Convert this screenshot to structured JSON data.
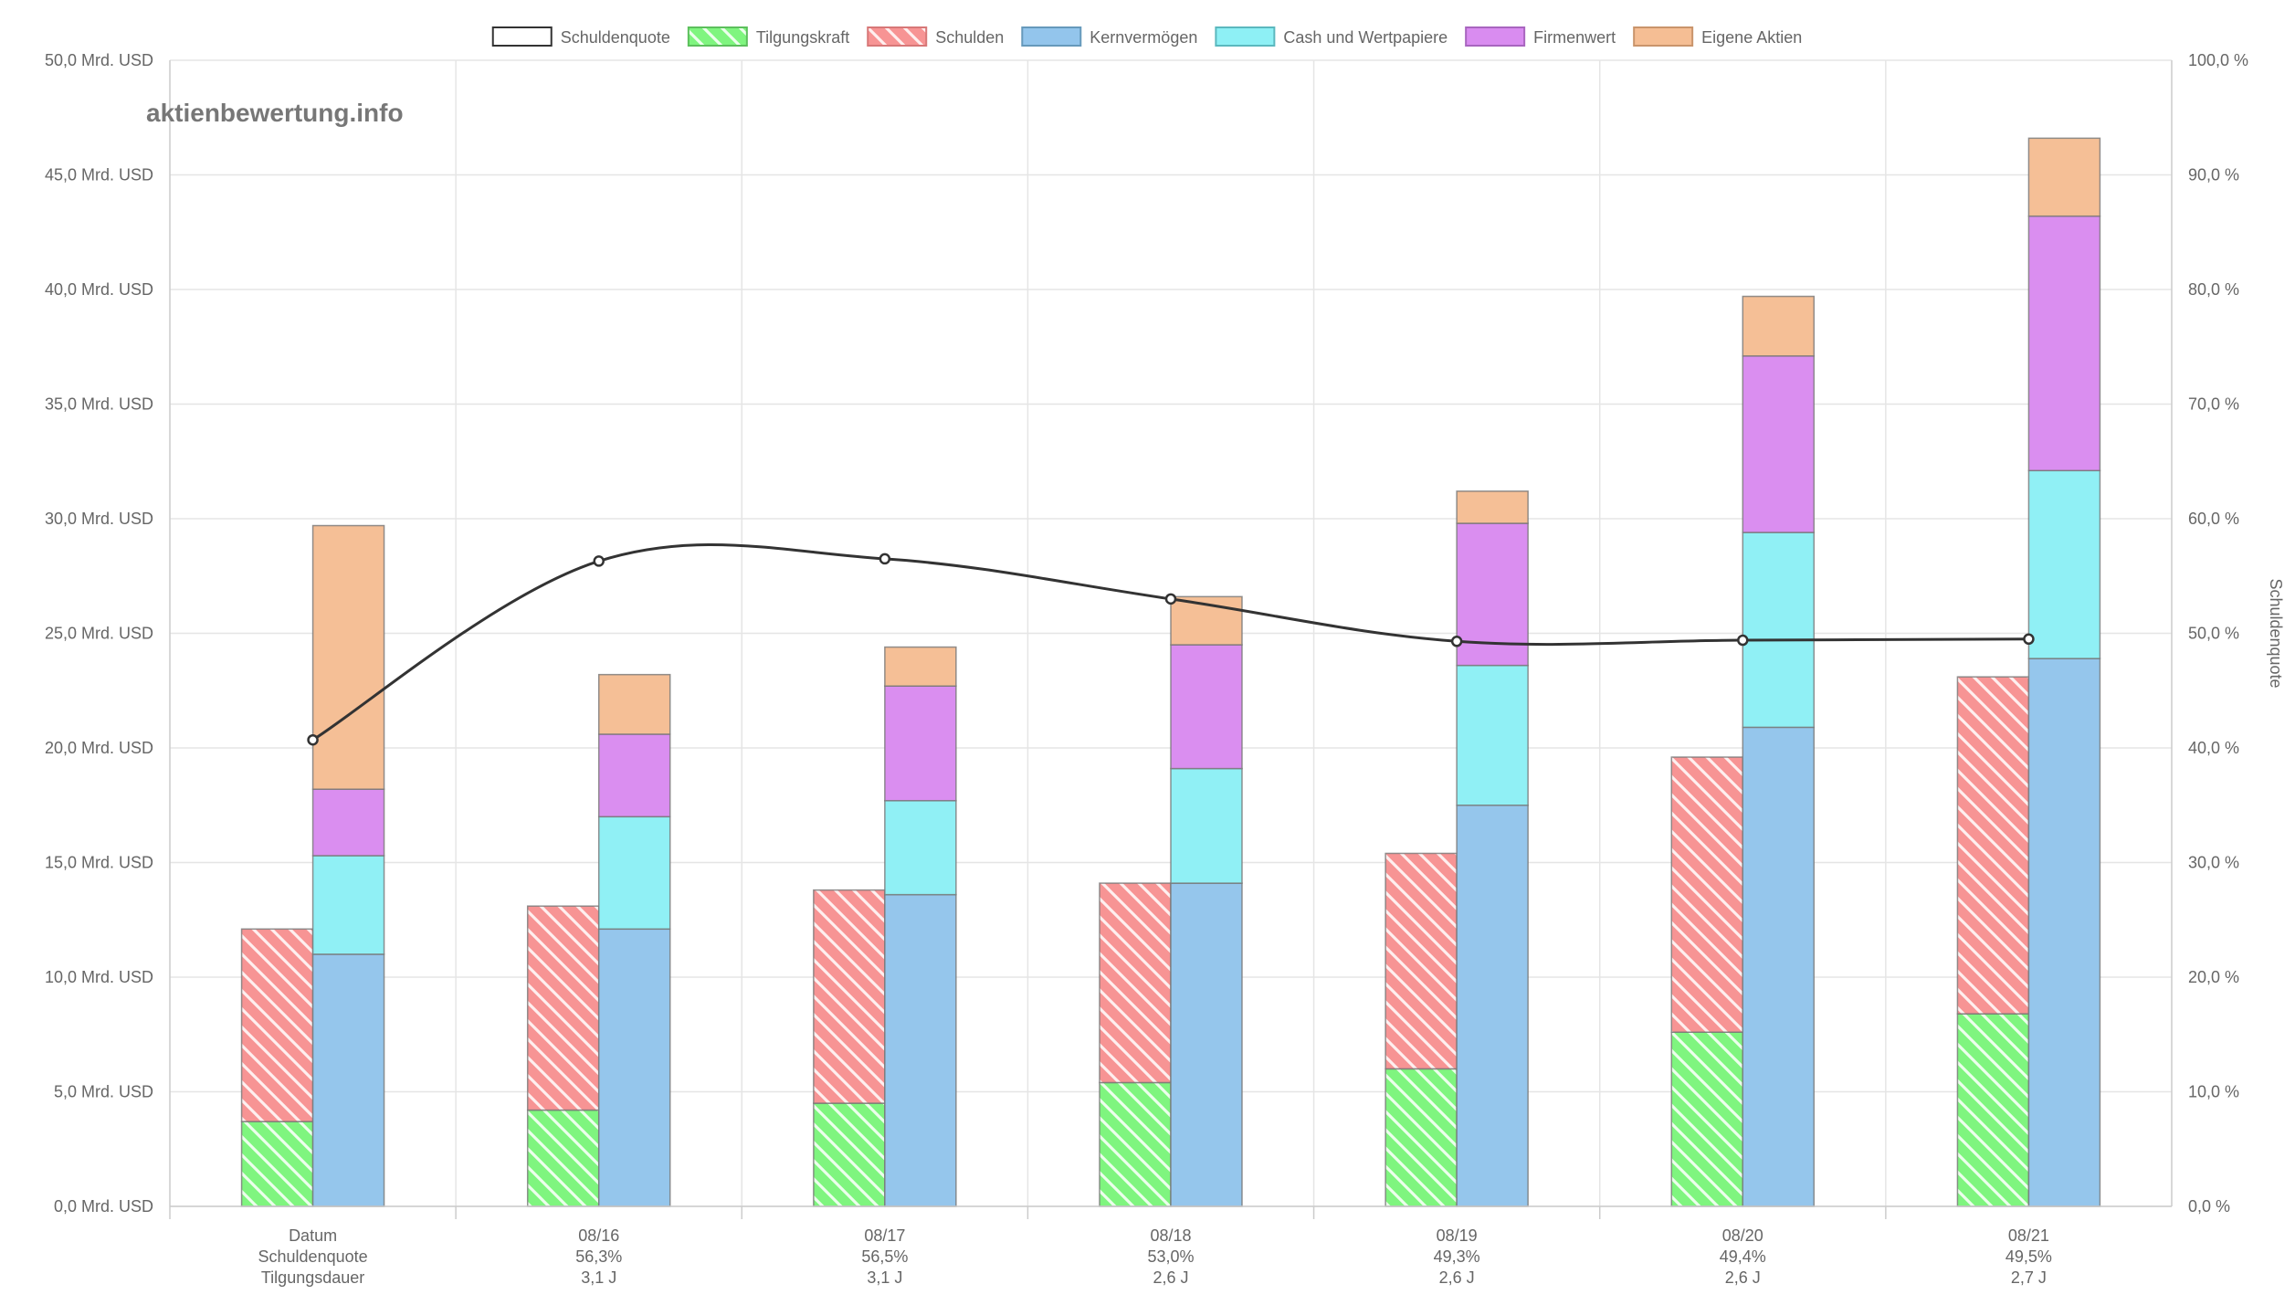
{
  "watermark": "aktienbewertung.info",
  "chart_data": {
    "type": "bar",
    "categories": [
      "Datum",
      "08/16",
      "08/17",
      "08/18",
      "08/19",
      "08/20",
      "08/21"
    ],
    "category_sublabels": [
      [
        "Schuldenquote",
        "Tilgungsdauer"
      ],
      [
        "56,3%",
        "3,1 J"
      ],
      [
        "56,5%",
        "3,1 J"
      ],
      [
        "53,0%",
        "2,6 J"
      ],
      [
        "49,3%",
        "2,6 J"
      ],
      [
        "49,4%",
        "2,6 J"
      ],
      [
        "49,5%",
        "2,7 J"
      ]
    ],
    "legend": [
      {
        "name": "Schuldenquote",
        "color": "#ffffff",
        "border": "#333333",
        "pattern": "none"
      },
      {
        "name": "Tilgungskraft",
        "color": "#7ff57f",
        "border": "#5cbf5c",
        "pattern": "hatch"
      },
      {
        "name": "Schulden",
        "color": "#f79494",
        "border": "#d77777",
        "pattern": "hatch"
      },
      {
        "name": "Kernvermögen",
        "color": "#93c5ec",
        "border": "#6699bb",
        "pattern": "none"
      },
      {
        "name": "Cash und Wertpapiere",
        "color": "#8ef0f5",
        "border": "#5bb8be",
        "pattern": "none"
      },
      {
        "name": "Firmenwert",
        "color": "#d98cf0",
        "border": "#a865bf",
        "pattern": "none"
      },
      {
        "name": "Eigene Aktien",
        "color": "#f5be94",
        "border": "#c9946b",
        "pattern": "none"
      }
    ],
    "stack_left": {
      "Tilgungskraft": [
        3.7,
        4.2,
        4.5,
        5.4,
        6.0,
        7.6,
        8.4
      ],
      "Schulden": [
        8.4,
        8.9,
        9.3,
        8.7,
        9.4,
        12.0,
        14.7
      ]
    },
    "stack_right": {
      "Kernvermögen": [
        11.0,
        12.1,
        13.6,
        14.1,
        17.5,
        20.9,
        23.9
      ],
      "Cash und Wertpapiere": [
        4.3,
        4.9,
        4.1,
        5.0,
        6.1,
        8.5,
        8.2
      ],
      "Firmenwert": [
        2.9,
        3.6,
        5.0,
        5.4,
        6.2,
        7.7,
        11.1
      ],
      "Eigene Aktien": [
        11.5,
        2.6,
        1.7,
        2.1,
        1.4,
        2.6,
        3.4
      ]
    },
    "line": {
      "name": "Schuldenquote",
      "values": [
        40.7,
        56.3,
        56.5,
        53.0,
        49.3,
        49.4,
        49.5
      ]
    },
    "y_left": {
      "min": 0,
      "max": 50,
      "step": 5,
      "tick_labels": [
        "0,0 Mrd. USD",
        "5,0 Mrd. USD",
        "10,0 Mrd. USD",
        "15,0 Mrd. USD",
        "20,0 Mrd. USD",
        "25,0 Mrd. USD",
        "30,0 Mrd. USD",
        "35,0 Mrd. USD",
        "40,0 Mrd. USD",
        "45,0 Mrd. USD",
        "50,0 Mrd. USD"
      ]
    },
    "y_right": {
      "min": 0,
      "max": 100,
      "step": 10,
      "label": "Schuldenquote",
      "tick_labels": [
        "0,0 %",
        "10,0 %",
        "20,0 %",
        "30,0 %",
        "40,0 %",
        "50,0 %",
        "60,0 %",
        "70,0 %",
        "80,0 %",
        "90,0 %",
        "100,0 %"
      ]
    },
    "grid": true,
    "legend_position": "top"
  }
}
